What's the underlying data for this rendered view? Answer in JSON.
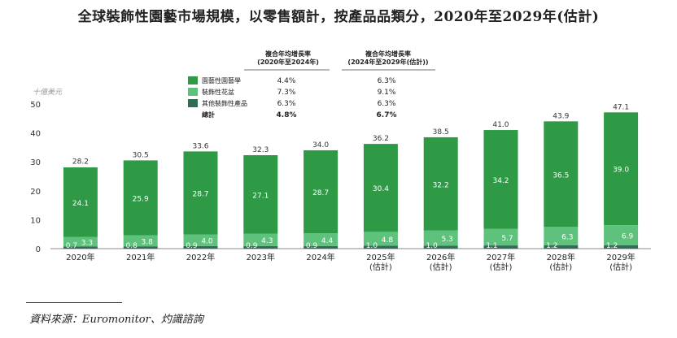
{
  "title": "全球裝飾性園藝市場規模，以零售額計，按產品品類分，2020年至2029年(估計)",
  "source": "資料來源：Euromonitor、灼識諮詢",
  "colors": {
    "series0": "#2e9a46",
    "series1": "#5fc27c",
    "series2": "#2e6e55"
  },
  "chart_data": {
    "type": "bar",
    "stacked": true,
    "unit": "十億美元",
    "ylim": [
      0,
      50
    ],
    "yticks": [
      0,
      10,
      20,
      30,
      40,
      50
    ],
    "categories": [
      [
        "2020年"
      ],
      [
        "2021年"
      ],
      [
        "2022年"
      ],
      [
        "2023年"
      ],
      [
        "2024年"
      ],
      [
        "2025年",
        "(估計)"
      ],
      [
        "2026年",
        "(估計)"
      ],
      [
        "2027年",
        "(估計)"
      ],
      [
        "2028年",
        "(估計)"
      ],
      [
        "2029年",
        "(估計)"
      ]
    ],
    "series": [
      {
        "name": "其他裝飾性產品",
        "values": [
          0.7,
          0.8,
          0.9,
          0.9,
          0.9,
          1.0,
          1.0,
          1.1,
          1.2,
          1.2
        ]
      },
      {
        "name": "裝飾性花盆",
        "values": [
          3.3,
          3.8,
          4.0,
          4.3,
          4.4,
          4.8,
          5.3,
          5.7,
          6.3,
          6.9
        ]
      },
      {
        "name": "園藝性園藝學",
        "values": [
          24.1,
          25.9,
          28.7,
          27.1,
          28.7,
          30.4,
          32.2,
          34.2,
          36.5,
          39.0
        ]
      }
    ],
    "totals": [
      28.2,
      30.5,
      33.6,
      32.3,
      34.0,
      36.2,
      38.5,
      41.0,
      43.9,
      47.1
    ],
    "cagr_table": {
      "headers": [
        [
          "複合年均增長率",
          "(2020年至2024年)"
        ],
        [
          "複合年均增長率",
          "(2024年至2029年(估計))"
        ]
      ],
      "rows": [
        {
          "label": "園藝性園藝學",
          "v1": "4.4%",
          "v2": "6.3%"
        },
        {
          "label": "裝飾性花盆",
          "v1": "7.3%",
          "v2": "9.1%"
        },
        {
          "label": "其他裝飾性產品",
          "v1": "6.3%",
          "v2": "6.3%"
        },
        {
          "label": "總計",
          "v1": "4.8%",
          "v2": "6.7%"
        }
      ]
    }
  }
}
